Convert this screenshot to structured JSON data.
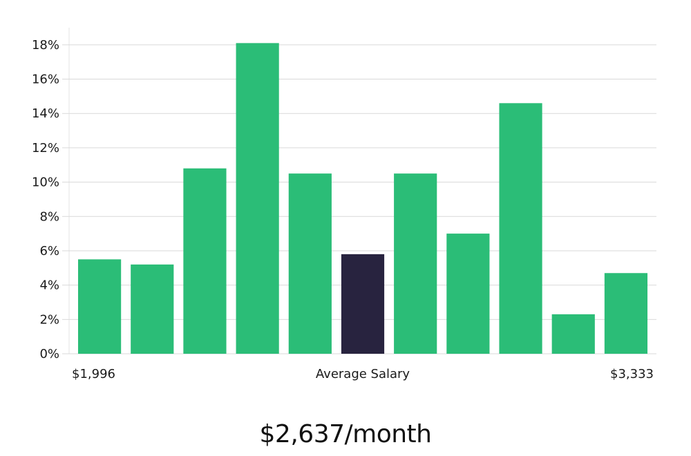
{
  "chart_data": {
    "type": "bar",
    "categories": [
      "",
      "",
      "",
      "",
      "",
      "",
      "",
      "",
      "",
      "",
      ""
    ],
    "values": [
      5.5,
      5.2,
      10.8,
      18.1,
      10.5,
      5.8,
      10.5,
      7.0,
      14.6,
      2.3,
      4.7
    ],
    "highlight_index": 5,
    "ylim": [
      0,
      19
    ],
    "yticks": [
      0,
      2,
      4,
      6,
      8,
      10,
      12,
      14,
      16,
      18
    ],
    "ytick_suffix": "%",
    "grid": true,
    "colors": {
      "bar": "#2bbd77",
      "highlight": "#28233f"
    },
    "x_min_label": "$1,996",
    "x_center_label": "Average Salary",
    "x_max_label": "$3,333"
  },
  "headline": "$2,637/month"
}
